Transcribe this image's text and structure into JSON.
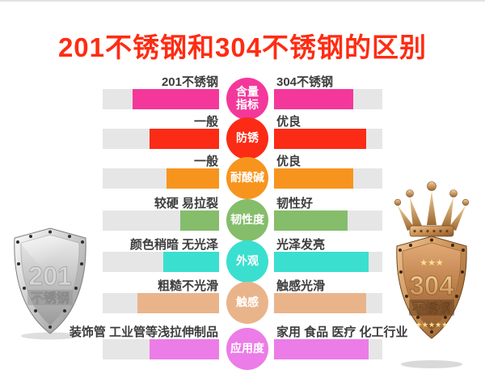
{
  "title": {
    "text": "201不锈钢和304不锈钢的区别",
    "color": "#fe2c13"
  },
  "track_color": "#e6e6e6",
  "rows": [
    {
      "category": "含量指标",
      "category_lines": [
        "含量",
        "指标"
      ],
      "color": "#f4389b",
      "left_label": "201不锈钢",
      "right_label": "304不锈钢",
      "left_fill": 74,
      "right_fill": 73
    },
    {
      "category": "防锈",
      "category_lines": [
        "防锈"
      ],
      "color": "#fb2b15",
      "left_label": "一般",
      "right_label": "优良",
      "left_fill": 60,
      "right_fill": 85
    },
    {
      "category": "耐酸碱",
      "category_lines": [
        "耐酸碱"
      ],
      "color": "#f7941e",
      "left_label": "一般",
      "right_label": "优良",
      "left_fill": 45,
      "right_fill": 73
    },
    {
      "category": "韧性度",
      "category_lines": [
        "韧性度"
      ],
      "color": "#85bd6b",
      "left_label": "较硬 易拉裂",
      "right_label": "韧性好",
      "left_fill": 33,
      "right_fill": 68
    },
    {
      "category": "外观",
      "category_lines": [
        "外观"
      ],
      "color": "#3adfd0",
      "left_label": "颜色稍暗 无光泽",
      "right_label": "光泽发亮",
      "left_fill": 48,
      "right_fill": 87
    },
    {
      "category": "触感",
      "category_lines": [
        "触感"
      ],
      "color": "#eab48b",
      "left_label": "粗糙不光滑",
      "right_label": "触感光滑",
      "left_fill": 70,
      "right_fill": 85
    },
    {
      "category": "应用度",
      "category_lines": [
        "应用度"
      ],
      "color": "#ec7ce7",
      "left_label": "装饰管 工业管等浅拉伸制品",
      "right_label": "家用 食品 医疗 化工行业",
      "left_fill": 60,
      "right_fill": 87
    }
  ],
  "left_badge": {
    "line1": "201",
    "line2": "不锈钢"
  },
  "right_badge": {
    "line1": "304",
    "line2": "不锈钢",
    "stars_top": "★★★",
    "stars_bottom": "★★★★★"
  },
  "chart_data": {
    "type": "bar",
    "title": "201不锈钢和304不锈钢的区别",
    "categories": [
      "含量指标",
      "防锈",
      "耐酸碱",
      "韧性度",
      "外观",
      "触感",
      "应用度"
    ],
    "series": [
      {
        "name": "201不锈钢",
        "labels": [
          "201不锈钢",
          "一般",
          "一般",
          "较硬 易拉裂",
          "颜色稍暗 无光泽",
          "粗糙不光滑",
          "装饰管 工业管等浅拉伸制品"
        ],
        "values": [
          74,
          60,
          45,
          33,
          48,
          70,
          60
        ]
      },
      {
        "name": "304不锈钢",
        "labels": [
          "304不锈钢",
          "优良",
          "优良",
          "韧性好",
          "光泽发亮",
          "触感光滑",
          "家用 食品 医疗 化工行业"
        ],
        "values": [
          73,
          85,
          73,
          68,
          87,
          85,
          87
        ]
      }
    ],
    "value_unit": "percent_of_track",
    "row_colors": [
      "#f4389b",
      "#fb2b15",
      "#f7941e",
      "#85bd6b",
      "#3adfd0",
      "#eab48b",
      "#ec7ce7"
    ],
    "legend_position": "none",
    "grid": false
  }
}
